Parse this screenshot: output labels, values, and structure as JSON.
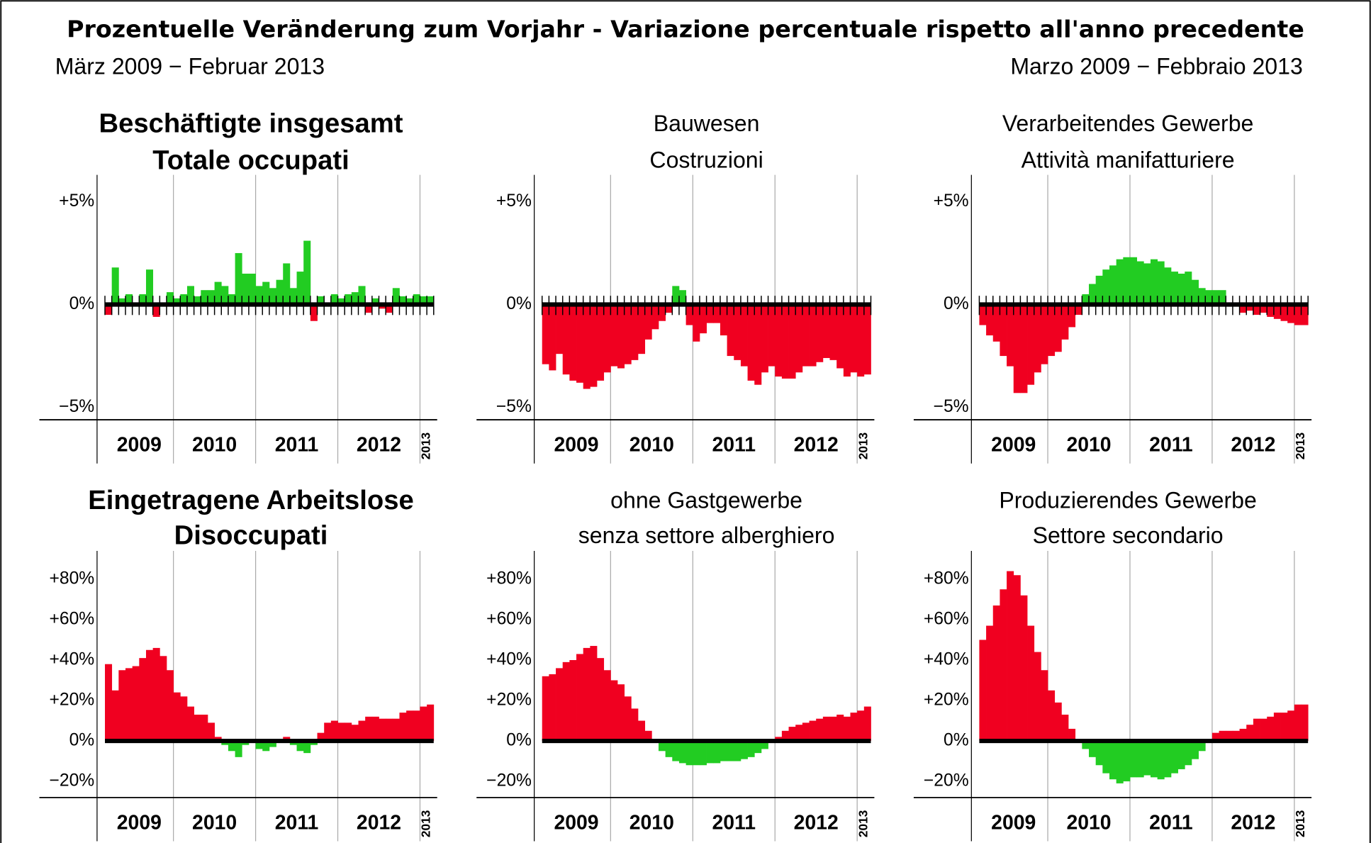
{
  "header": {
    "title": "Prozentuelle Veränderung zum Vorjahr - Variazione percentuale rispetto all'anno precedente",
    "subtitle_left": "März 2009 − Februar 2013",
    "subtitle_right": "Marzo 2009 − Febbraio 2013"
  },
  "chart_data": [
    {
      "type": "bar",
      "title": [
        "Beschäftigte insgesamt",
        "Totale occupati"
      ],
      "title_bold": true,
      "month_ticks": true,
      "categories": [
        null,
        null,
        null,
        null,
        null,
        null,
        null,
        null,
        null,
        null,
        null,
        null,
        null,
        null,
        null,
        null,
        null,
        null,
        null,
        null,
        null,
        null,
        null,
        null,
        null,
        null,
        null,
        null,
        null,
        null,
        null,
        null,
        null,
        null,
        null,
        null,
        null,
        null,
        null,
        null,
        null,
        null,
        null,
        null,
        null,
        null,
        null,
        null
      ],
      "values": [
        -0.5,
        1.8,
        0.3,
        0.5,
        0.1,
        0.5,
        1.7,
        -0.6,
        0.1,
        0.6,
        0.3,
        0.5,
        0.9,
        0.4,
        0.7,
        0.7,
        1.1,
        0.9,
        0.5,
        2.5,
        1.5,
        1.5,
        0.9,
        1.1,
        0.8,
        1.2,
        2.0,
        0.8,
        1.6,
        3.1,
        -0.8,
        0.4,
        -0.1,
        0.5,
        0.3,
        0.5,
        0.6,
        0.9,
        -0.4,
        0.3,
        -0.2,
        -0.4,
        0.8,
        0.4,
        0.3,
        0.5,
        0.4,
        0.4
      ],
      "pos_color": "#22cc22",
      "neg_color": "#f00020",
      "ylim": [
        -5.6,
        6.3
      ],
      "yticks": [
        {
          "value": 5,
          "label": "+5%"
        },
        {
          "value": 0,
          "label": "0%"
        },
        {
          "value": -5,
          "label": "−5%"
        }
      ],
      "years": [
        {
          "label": "2009",
          "months": 10
        },
        {
          "label": "2010",
          "months": 12
        },
        {
          "label": "2011",
          "months": 12
        },
        {
          "label": "2012",
          "months": 12
        },
        {
          "label": "2013",
          "months": 2
        }
      ]
    },
    {
      "type": "bar",
      "title": [
        "Bauwesen",
        "Costruzioni"
      ],
      "title_bold": false,
      "month_ticks": true,
      "categories": [
        null,
        null,
        null,
        null,
        null,
        null,
        null,
        null,
        null,
        null,
        null,
        null,
        null,
        null,
        null,
        null,
        null,
        null,
        null,
        null,
        null,
        null,
        null,
        null,
        null,
        null,
        null,
        null,
        null,
        null,
        null,
        null,
        null,
        null,
        null,
        null,
        null,
        null,
        null,
        null,
        null,
        null,
        null,
        null,
        null,
        null,
        null,
        null
      ],
      "values": [
        -2.9,
        -3.2,
        -2.4,
        -3.4,
        -3.7,
        -3.8,
        -4.1,
        -4.0,
        -3.7,
        -3.3,
        -3.0,
        -3.1,
        -2.9,
        -2.7,
        -2.4,
        -1.7,
        -1.2,
        -0.8,
        -0.4,
        0.9,
        0.7,
        -1.0,
        -1.8,
        -1.4,
        -0.9,
        -0.9,
        -1.5,
        -2.5,
        -2.7,
        -3.0,
        -3.7,
        -3.9,
        -3.3,
        -3.0,
        -3.5,
        -3.6,
        -3.6,
        -3.3,
        -3.0,
        -3.0,
        -2.8,
        -2.6,
        -2.7,
        -3.1,
        -3.5,
        -3.3,
        -3.5,
        -3.4
      ],
      "pos_color": "#22cc22",
      "neg_color": "#f00020",
      "ylim": [
        -5.6,
        6.3
      ],
      "yticks": [
        {
          "value": 5,
          "label": "+5%"
        },
        {
          "value": 0,
          "label": "0%"
        },
        {
          "value": -5,
          "label": "−5%"
        }
      ],
      "years": [
        {
          "label": "2009",
          "months": 10
        },
        {
          "label": "2010",
          "months": 12
        },
        {
          "label": "2011",
          "months": 12
        },
        {
          "label": "2012",
          "months": 12
        },
        {
          "label": "2013",
          "months": 2
        }
      ]
    },
    {
      "type": "bar",
      "title": [
        "Verarbeitendes Gewerbe",
        "Attività manifatturiere"
      ],
      "title_bold": false,
      "month_ticks": true,
      "categories": [
        null,
        null,
        null,
        null,
        null,
        null,
        null,
        null,
        null,
        null,
        null,
        null,
        null,
        null,
        null,
        null,
        null,
        null,
        null,
        null,
        null,
        null,
        null,
        null,
        null,
        null,
        null,
        null,
        null,
        null,
        null,
        null,
        null,
        null,
        null,
        null,
        null,
        null,
        null,
        null,
        null,
        null,
        null,
        null,
        null,
        null,
        null,
        null
      ],
      "values": [
        -1.0,
        -1.5,
        -1.8,
        -2.5,
        -3.0,
        -4.3,
        -4.3,
        -3.9,
        -3.3,
        -2.9,
        -2.5,
        -2.3,
        -1.7,
        -1.1,
        -0.5,
        0.5,
        1.0,
        1.4,
        1.7,
        1.9,
        2.2,
        2.3,
        2.3,
        2.1,
        2.0,
        2.2,
        2.1,
        1.8,
        1.6,
        1.5,
        1.6,
        1.2,
        0.8,
        0.7,
        0.7,
        0.7,
        0.1,
        -0.1,
        -0.4,
        -0.3,
        -0.5,
        -0.4,
        -0.6,
        -0.7,
        -0.8,
        -0.9,
        -1.0,
        -1.0
      ],
      "pos_color": "#22cc22",
      "neg_color": "#f00020",
      "ylim": [
        -5.6,
        6.3
      ],
      "yticks": [
        {
          "value": 5,
          "label": "+5%"
        },
        {
          "value": 0,
          "label": "0%"
        },
        {
          "value": -5,
          "label": "−5%"
        }
      ],
      "years": [
        {
          "label": "2009",
          "months": 10
        },
        {
          "label": "2010",
          "months": 12
        },
        {
          "label": "2011",
          "months": 12
        },
        {
          "label": "2012",
          "months": 12
        },
        {
          "label": "2013",
          "months": 2
        }
      ]
    },
    {
      "type": "bar",
      "title": [
        "Eingetragene Arbeitslose",
        "Disoccupati"
      ],
      "title_bold": true,
      "month_ticks": false,
      "categories": [
        null,
        null,
        null,
        null,
        null,
        null,
        null,
        null,
        null,
        null,
        null,
        null,
        null,
        null,
        null,
        null,
        null,
        null,
        null,
        null,
        null,
        null,
        null,
        null,
        null,
        null,
        null,
        null,
        null,
        null,
        null,
        null,
        null,
        null,
        null,
        null,
        null,
        null,
        null,
        null,
        null,
        null,
        null,
        null,
        null,
        null,
        null,
        null
      ],
      "values": [
        38,
        25,
        35,
        36,
        37,
        41,
        45,
        46,
        42,
        35,
        24,
        22,
        17,
        13,
        13,
        9,
        2,
        -2,
        -5,
        -8,
        -2,
        -1,
        -4,
        -5,
        -3,
        0,
        2,
        -2,
        -5,
        -6,
        -2,
        4,
        9,
        10,
        9,
        9,
        8,
        10,
        12,
        12,
        11,
        11,
        11,
        14,
        15,
        15,
        17,
        18
      ],
      "pos_color": "#f00020",
      "neg_color": "#22cc22",
      "ylim": [
        -28,
        94
      ],
      "yticks": [
        {
          "value": -20,
          "label": "−20%"
        },
        {
          "value": 0,
          "label": "0%"
        },
        {
          "value": 20,
          "label": "+20%"
        },
        {
          "value": 40,
          "label": "+40%"
        },
        {
          "value": 60,
          "label": "+60%"
        },
        {
          "value": 80,
          "label": "+80%"
        }
      ],
      "years": [
        {
          "label": "2009",
          "months": 10
        },
        {
          "label": "2010",
          "months": 12
        },
        {
          "label": "2011",
          "months": 12
        },
        {
          "label": "2012",
          "months": 12
        },
        {
          "label": "2013",
          "months": 2
        }
      ]
    },
    {
      "type": "bar",
      "title": [
        "ohne Gastgewerbe",
        "senza settore alberghiero"
      ],
      "title_bold": false,
      "month_ticks": false,
      "categories": [
        null,
        null,
        null,
        null,
        null,
        null,
        null,
        null,
        null,
        null,
        null,
        null,
        null,
        null,
        null,
        null,
        null,
        null,
        null,
        null,
        null,
        null,
        null,
        null,
        null,
        null,
        null,
        null,
        null,
        null,
        null,
        null,
        null,
        null,
        null,
        null,
        null,
        null,
        null,
        null,
        null,
        null,
        null,
        null,
        null,
        null,
        null,
        null
      ],
      "values": [
        32,
        33,
        36,
        39,
        40,
        43,
        46,
        47,
        41,
        35,
        30,
        28,
        22,
        16,
        10,
        5,
        0,
        -5,
        -8,
        -10,
        -11,
        -12,
        -12,
        -12,
        -11,
        -11,
        -10,
        -10,
        -10,
        -9,
        -8,
        -6,
        -4,
        -1,
        2,
        5,
        7,
        8,
        9,
        10,
        11,
        12,
        12,
        13,
        12,
        14,
        15,
        17
      ],
      "pos_color": "#f00020",
      "neg_color": "#22cc22",
      "ylim": [
        -28,
        94
      ],
      "yticks": [
        {
          "value": -20,
          "label": "−20%"
        },
        {
          "value": 0,
          "label": "0%"
        },
        {
          "value": 20,
          "label": "+20%"
        },
        {
          "value": 40,
          "label": "+40%"
        },
        {
          "value": 60,
          "label": "+60%"
        },
        {
          "value": 80,
          "label": "+80%"
        }
      ],
      "years": [
        {
          "label": "2009",
          "months": 10
        },
        {
          "label": "2010",
          "months": 12
        },
        {
          "label": "2011",
          "months": 12
        },
        {
          "label": "2012",
          "months": 12
        },
        {
          "label": "2013",
          "months": 2
        }
      ]
    },
    {
      "type": "bar",
      "title": [
        "Produzierendes Gewerbe",
        "Settore secondario"
      ],
      "title_bold": false,
      "month_ticks": false,
      "categories": [
        null,
        null,
        null,
        null,
        null,
        null,
        null,
        null,
        null,
        null,
        null,
        null,
        null,
        null,
        null,
        null,
        null,
        null,
        null,
        null,
        null,
        null,
        null,
        null,
        null,
        null,
        null,
        null,
        null,
        null,
        null,
        null,
        null,
        null,
        null,
        null,
        null,
        null,
        null,
        null,
        null,
        null,
        null,
        null,
        null,
        null,
        null,
        null
      ],
      "values": [
        50,
        57,
        67,
        75,
        84,
        82,
        72,
        57,
        44,
        35,
        25,
        19,
        13,
        6,
        0,
        -4,
        -8,
        -12,
        -16,
        -19,
        -21,
        -20,
        -18,
        -18,
        -17,
        -18,
        -19,
        -18,
        -16,
        -14,
        -12,
        -9,
        -5,
        -1,
        4,
        5,
        5,
        5,
        6,
        8,
        11,
        11,
        12,
        14,
        14,
        15,
        18,
        18
      ],
      "pos_color": "#f00020",
      "neg_color": "#22cc22",
      "ylim": [
        -28,
        94
      ],
      "yticks": [
        {
          "value": -20,
          "label": "−20%"
        },
        {
          "value": 0,
          "label": "0%"
        },
        {
          "value": 20,
          "label": "+20%"
        },
        {
          "value": 40,
          "label": "+40%"
        },
        {
          "value": 60,
          "label": "+60%"
        },
        {
          "value": 80,
          "label": "+80%"
        }
      ],
      "years": [
        {
          "label": "2009",
          "months": 10
        },
        {
          "label": "2010",
          "months": 12
        },
        {
          "label": "2011",
          "months": 12
        },
        {
          "label": "2012",
          "months": 12
        },
        {
          "label": "2013",
          "months": 2
        }
      ]
    }
  ]
}
